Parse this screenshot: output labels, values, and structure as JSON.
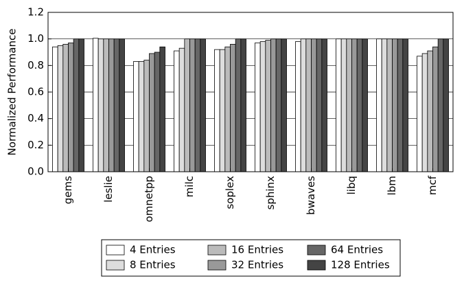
{
  "chart_data": {
    "type": "bar",
    "y_label": "Normalized Performance",
    "categories": [
      "gems",
      "leslie",
      "omnetpp",
      "milc",
      "soplex",
      "sphinx",
      "bwaves",
      "libq",
      "lbm",
      "mcf"
    ],
    "series": [
      {
        "name": "4 Entries",
        "color": "#ffffff",
        "values": [
          0.94,
          1.005,
          0.83,
          0.91,
          0.92,
          0.97,
          0.98,
          1.0,
          1.0,
          0.87
        ]
      },
      {
        "name": "8 Entries",
        "color": "#dddddd",
        "values": [
          0.95,
          1.0,
          0.83,
          0.93,
          0.92,
          0.98,
          1.0,
          1.0,
          1.0,
          0.89
        ]
      },
      {
        "name": "16 Entries",
        "color": "#bbbbbb",
        "values": [
          0.96,
          1.0,
          0.84,
          1.0,
          0.94,
          0.99,
          1.0,
          1.0,
          1.0,
          0.91
        ]
      },
      {
        "name": "32 Entries",
        "color": "#999999",
        "values": [
          0.97,
          1.0,
          0.89,
          1.0,
          0.96,
          1.0,
          1.0,
          1.0,
          1.0,
          0.94
        ]
      },
      {
        "name": "64 Entries",
        "color": "#666666",
        "values": [
          1.0,
          1.0,
          0.9,
          1.0,
          1.0,
          1.0,
          1.0,
          1.0,
          1.0,
          1.0
        ]
      },
      {
        "name": "128 Entries",
        "color": "#444444",
        "values": [
          1.0,
          1.0,
          0.94,
          1.0,
          1.0,
          1.0,
          1.0,
          1.0,
          1.0,
          1.0
        ]
      }
    ],
    "ylim": [
      0,
      1.2
    ],
    "yticks": [
      {
        "value": 0,
        "label": "0.0"
      },
      {
        "value": 0.2,
        "label": "0.2"
      },
      {
        "value": 0.4,
        "label": "0.4"
      },
      {
        "value": 0.6,
        "label": "0.6"
      },
      {
        "value": 0.8,
        "label": "0.8"
      },
      {
        "value": 1,
        "label": "1.0"
      },
      {
        "value": 1.2,
        "label": "1.2"
      }
    ],
    "grid": true,
    "legend_position": "bottom"
  }
}
